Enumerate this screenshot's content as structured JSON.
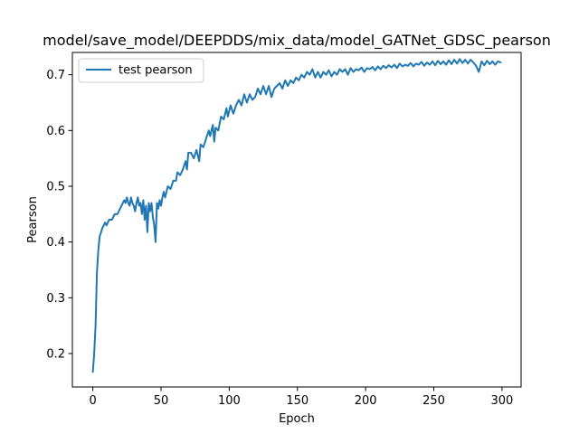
{
  "chart_data": {
    "type": "line",
    "title": "model/save_model/DEEPDDS/mix_data/model_GATNet_GDSC_pearson",
    "xlabel": "Epoch",
    "ylabel": "Pearson",
    "xlim": [
      -15,
      314
    ],
    "ylim": [
      0.14,
      0.74
    ],
    "xticks": [
      0,
      50,
      100,
      150,
      200,
      250,
      300
    ],
    "yticks": [
      0.2,
      0.3,
      0.4,
      0.5,
      0.6,
      0.7
    ],
    "ytick_labels": [
      "0.2",
      "0.3",
      "0.4",
      "0.5",
      "0.6",
      "0.7"
    ],
    "grid": false,
    "legend_position": "upper left",
    "series": [
      {
        "name": "test pearson",
        "color": "#1f77b4",
        "points": [
          [
            0,
            0.167
          ],
          [
            1,
            0.2
          ],
          [
            2,
            0.25
          ],
          [
            3,
            0.345
          ],
          [
            4,
            0.385
          ],
          [
            5,
            0.41
          ],
          [
            7,
            0.425
          ],
          [
            9,
            0.435
          ],
          [
            10,
            0.43
          ],
          [
            12,
            0.44
          ],
          [
            14,
            0.44
          ],
          [
            16,
            0.45
          ],
          [
            18,
            0.45
          ],
          [
            20,
            0.46
          ],
          [
            22,
            0.47
          ],
          [
            23,
            0.475
          ],
          [
            24,
            0.47
          ],
          [
            25,
            0.48
          ],
          [
            26,
            0.47
          ],
          [
            27,
            0.465
          ],
          [
            28,
            0.48
          ],
          [
            29,
            0.47
          ],
          [
            30,
            0.465
          ],
          [
            31,
            0.455
          ],
          [
            32,
            0.47
          ],
          [
            33,
            0.48
          ],
          [
            34,
            0.465
          ],
          [
            35,
            0.47
          ],
          [
            36,
            0.45
          ],
          [
            37,
            0.475
          ],
          [
            38,
            0.44
          ],
          [
            39,
            0.465
          ],
          [
            40,
            0.418
          ],
          [
            41,
            0.47
          ],
          [
            42,
            0.455
          ],
          [
            43,
            0.47
          ],
          [
            44,
            0.445
          ],
          [
            45,
            0.43
          ],
          [
            46,
            0.4
          ],
          [
            47,
            0.47
          ],
          [
            48,
            0.46
          ],
          [
            49,
            0.475
          ],
          [
            50,
            0.465
          ],
          [
            51,
            0.48
          ],
          [
            52,
            0.49
          ],
          [
            53,
            0.48
          ],
          [
            55,
            0.5
          ],
          [
            57,
            0.495
          ],
          [
            59,
            0.51
          ],
          [
            61,
            0.51
          ],
          [
            62,
            0.525
          ],
          [
            64,
            0.52
          ],
          [
            66,
            0.53
          ],
          [
            68,
            0.545
          ],
          [
            69,
            0.53
          ],
          [
            70,
            0.56
          ],
          [
            72,
            0.56
          ],
          [
            74,
            0.55
          ],
          [
            76,
            0.565
          ],
          [
            78,
            0.545
          ],
          [
            79,
            0.575
          ],
          [
            81,
            0.57
          ],
          [
            83,
            0.585
          ],
          [
            85,
            0.6
          ],
          [
            86,
            0.59
          ],
          [
            88,
            0.61
          ],
          [
            89,
            0.58
          ],
          [
            90,
            0.605
          ],
          [
            92,
            0.6
          ],
          [
            94,
            0.625
          ],
          [
            96,
            0.62
          ],
          [
            98,
            0.64
          ],
          [
            99,
            0.625
          ],
          [
            101,
            0.645
          ],
          [
            103,
            0.63
          ],
          [
            105,
            0.645
          ],
          [
            107,
            0.655
          ],
          [
            109,
            0.645
          ],
          [
            111,
            0.665
          ],
          [
            113,
            0.65
          ],
          [
            115,
            0.665
          ],
          [
            117,
            0.655
          ],
          [
            119,
            0.66
          ],
          [
            121,
            0.675
          ],
          [
            123,
            0.665
          ],
          [
            125,
            0.68
          ],
          [
            127,
            0.665
          ],
          [
            129,
            0.68
          ],
          [
            131,
            0.66
          ],
          [
            133,
            0.675
          ],
          [
            135,
            0.68
          ],
          [
            137,
            0.685
          ],
          [
            139,
            0.675
          ],
          [
            141,
            0.69
          ],
          [
            143,
            0.68
          ],
          [
            145,
            0.69
          ],
          [
            147,
            0.685
          ],
          [
            149,
            0.695
          ],
          [
            151,
            0.69
          ],
          [
            153,
            0.7
          ],
          [
            155,
            0.695
          ],
          [
            157,
            0.705
          ],
          [
            159,
            0.7
          ],
          [
            161,
            0.71
          ],
          [
            163,
            0.695
          ],
          [
            165,
            0.705
          ],
          [
            167,
            0.695
          ],
          [
            169,
            0.705
          ],
          [
            171,
            0.7
          ],
          [
            173,
            0.708
          ],
          [
            175,
            0.697
          ],
          [
            177,
            0.705
          ],
          [
            179,
            0.7
          ],
          [
            181,
            0.71
          ],
          [
            183,
            0.705
          ],
          [
            185,
            0.71
          ],
          [
            187,
            0.7
          ],
          [
            189,
            0.712
          ],
          [
            191,
            0.705
          ],
          [
            193,
            0.71
          ],
          [
            195,
            0.708
          ],
          [
            197,
            0.713
          ],
          [
            199,
            0.705
          ],
          [
            201,
            0.712
          ],
          [
            203,
            0.71
          ],
          [
            205,
            0.714
          ],
          [
            207,
            0.708
          ],
          [
            209,
            0.715
          ],
          [
            211,
            0.71
          ],
          [
            213,
            0.716
          ],
          [
            215,
            0.712
          ],
          [
            217,
            0.717
          ],
          [
            219,
            0.713
          ],
          [
            221,
            0.718
          ],
          [
            223,
            0.712
          ],
          [
            225,
            0.72
          ],
          [
            227,
            0.715
          ],
          [
            229,
            0.718
          ],
          [
            231,
            0.716
          ],
          [
            233,
            0.721
          ],
          [
            235,
            0.715
          ],
          [
            237,
            0.72
          ],
          [
            239,
            0.718
          ],
          [
            241,
            0.723
          ],
          [
            243,
            0.716
          ],
          [
            245,
            0.722
          ],
          [
            247,
            0.718
          ],
          [
            249,
            0.724
          ],
          [
            251,
            0.717
          ],
          [
            253,
            0.725
          ],
          [
            255,
            0.719
          ],
          [
            257,
            0.724
          ],
          [
            259,
            0.718
          ],
          [
            261,
            0.726
          ],
          [
            263,
            0.719
          ],
          [
            265,
            0.727
          ],
          [
            267,
            0.72
          ],
          [
            269,
            0.728
          ],
          [
            271,
            0.721
          ],
          [
            273,
            0.727
          ],
          [
            275,
            0.72
          ],
          [
            277,
            0.727
          ],
          [
            279,
            0.722
          ],
          [
            281,
            0.716
          ],
          [
            283,
            0.705
          ],
          [
            285,
            0.724
          ],
          [
            287,
            0.717
          ],
          [
            289,
            0.725
          ],
          [
            291,
            0.719
          ],
          [
            293,
            0.724
          ],
          [
            295,
            0.718
          ],
          [
            297,
            0.724
          ],
          [
            299,
            0.722
          ]
        ]
      }
    ]
  }
}
